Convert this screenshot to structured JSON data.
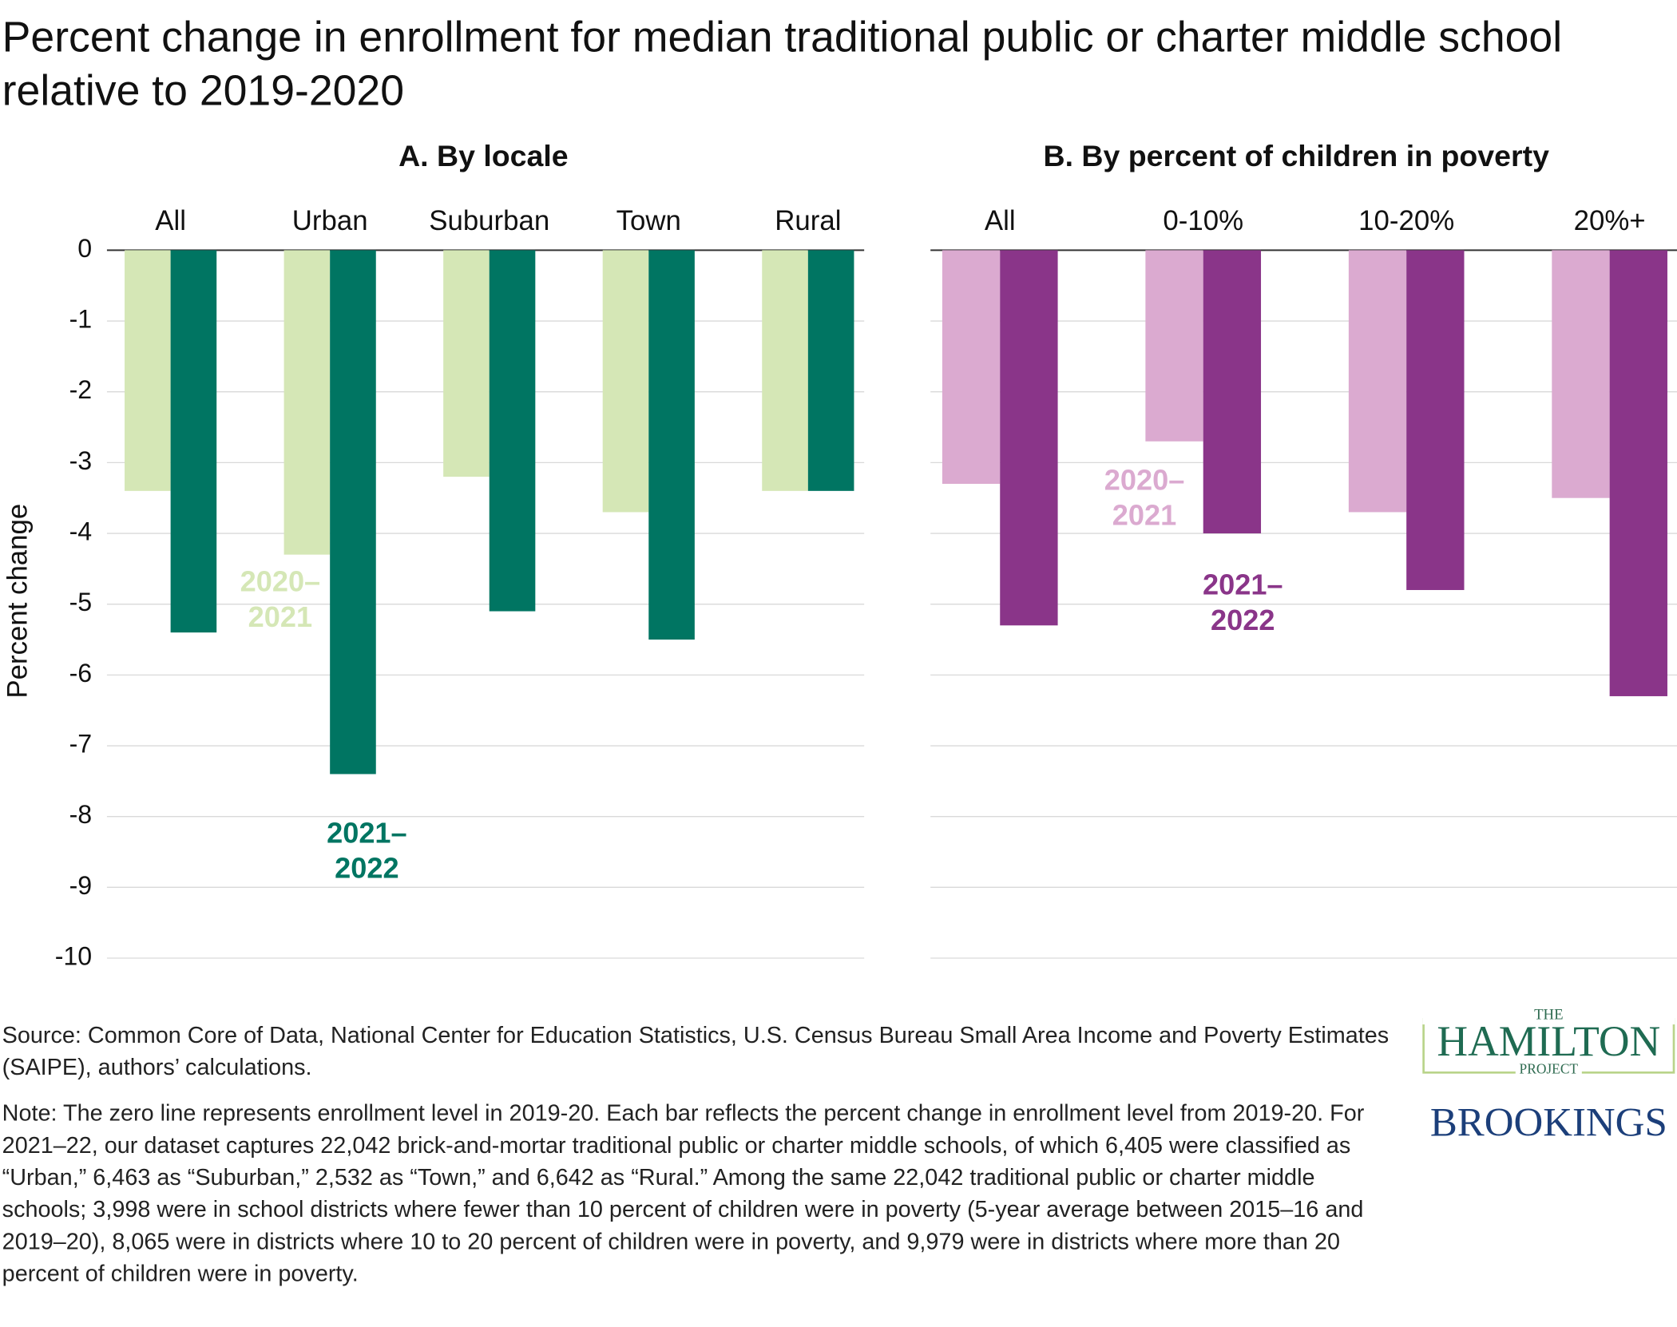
{
  "title": "Percent change in enrollment for median traditional public or charter middle school relative to 2019-2020",
  "chart_data": [
    {
      "type": "bar",
      "title": "A. By locale",
      "y_label": "Percent change",
      "categories": [
        "All",
        "Urban",
        "Suburban",
        "Town",
        "Rural"
      ],
      "series": [
        {
          "name": "2020–2021",
          "color": "#d5e7b6",
          "values": [
            -3.4,
            -4.3,
            -3.2,
            -3.7,
            -3.4
          ]
        },
        {
          "name": "2021–2022",
          "color": "#007562",
          "values": [
            -5.4,
            -7.4,
            -5.1,
            -5.5,
            -3.4
          ]
        }
      ],
      "ylim": [
        -10,
        0
      ],
      "yticks": [
        0,
        -1,
        -2,
        -3,
        -4,
        -5,
        -6,
        -7,
        -8,
        -9,
        -10
      ],
      "grid": true
    },
    {
      "type": "bar",
      "title": "B. By percent of children in poverty",
      "categories": [
        "All",
        "0-10%",
        "10-20%",
        "20%+"
      ],
      "series": [
        {
          "name": "2020–2021",
          "color": "#dbaad0",
          "values": [
            -3.3,
            -2.7,
            -3.7,
            -3.5
          ]
        },
        {
          "name": "2021–2022",
          "color": "#8a3589",
          "values": [
            -5.3,
            -4.0,
            -4.8,
            -6.3
          ]
        }
      ],
      "ylim": [
        -10,
        0
      ],
      "grid": true
    }
  ],
  "source": "Source: Common Core of Data, National Center for Education Statistics, U.S. Census Bureau Small Area Income and Poverty Estimates (SAIPE), authors’ calculations.",
  "note": "Note: The zero line represents enrollment level in 2019-20. Each bar reflects the percent change in enrollment level from 2019-20. For 2021–22, our dataset captures 22,042 brick-and-mortar traditional public or charter middle schools, of which 6,405 were classified as “Urban,” 6,463 as “Suburban,” 2,532 as “Town,” and 6,642  as “Rural.” Among the same 22,042 traditional public or charter middle schools; 3,998 were in school districts where fewer than 10 percent of children were in poverty (5-year average between 2015–16 and 2019–20), 8,065 were in districts where 10 to 20 percent of children were in poverty, and 9,979 were in districts where more than 20 percent of children were in poverty.",
  "logo": {
    "top": "THE",
    "name": "HAMILTON",
    "bottom": "PROJECT",
    "org": "BROOKINGS"
  }
}
